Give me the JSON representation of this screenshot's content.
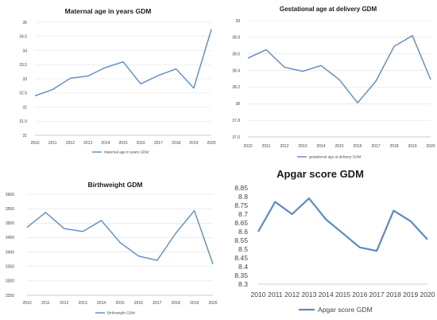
{
  "chart_data": [
    {
      "type": "line",
      "title": "Maternal age in years GDM",
      "categories": [
        "2010",
        "2011",
        "2012",
        "2013",
        "2014",
        "2015",
        "2016",
        "2017",
        "2018",
        "2019",
        "2020"
      ],
      "series": [
        {
          "name": "Maternal age in years GDM",
          "values": [
            32.4,
            32.62,
            33.02,
            33.1,
            33.4,
            33.6,
            32.82,
            33.12,
            33.35,
            32.67,
            34.75
          ]
        }
      ],
      "yticks": [
        "31",
        "31.5",
        "32",
        "32.5",
        "33",
        "33.5",
        "34",
        "34.5",
        "35"
      ],
      "ylim": [
        31,
        35
      ],
      "grid": true,
      "legend": "bottom"
    },
    {
      "type": "line",
      "title": "Gestational age at delivery GDM",
      "categories": [
        "2010",
        "2011",
        "2012",
        "2013",
        "2014",
        "2015",
        "2016",
        "2017",
        "2018",
        "2019",
        "2020"
      ],
      "series": [
        {
          "name": "gestational age at delivery GDM",
          "values": [
            38.55,
            38.65,
            38.44,
            38.39,
            38.46,
            38.29,
            38.01,
            38.27,
            38.69,
            38.82,
            38.29
          ]
        }
      ],
      "yticks": [
        "37.6",
        "37.8",
        "38",
        "38.2",
        "38.4",
        "38.6",
        "38.8",
        "39"
      ],
      "ylim": [
        37.6,
        39
      ],
      "grid": true,
      "legend": "bottom"
    },
    {
      "type": "line",
      "title": "Birthweight GDM",
      "categories": [
        "2010",
        "2011",
        "2012",
        "2013",
        "2014",
        "2015",
        "2016",
        "2017",
        "2018",
        "2019",
        "2020"
      ],
      "series": [
        {
          "name": "Birthweight GDM",
          "values": [
            3485,
            3537,
            3481,
            3471,
            3509,
            3433,
            3386,
            3371,
            3465,
            3543,
            3358
          ]
        }
      ],
      "yticks": [
        "3250",
        "3300",
        "3350",
        "3400",
        "3450",
        "3500",
        "3550",
        "3600"
      ],
      "ylim": [
        3250,
        3600
      ],
      "grid": true,
      "legend": "bottom"
    },
    {
      "type": "line",
      "title": "Apgar score GDM",
      "categories": [
        "2010",
        "2011",
        "2012",
        "2013",
        "2014",
        "2015",
        "2016",
        "2017",
        "2018",
        "2019",
        "2020"
      ],
      "series": [
        {
          "name": "Apgar score GDM",
          "values": [
            8.6,
            8.77,
            8.7,
            8.79,
            8.67,
            8.59,
            8.51,
            8.49,
            8.72,
            8.66,
            8.555
          ]
        }
      ],
      "yticks": [
        "8.3",
        "8.35",
        "8.4",
        "8.45",
        "8.5",
        "8.55",
        "8.6",
        "8.65",
        "8.7",
        "8.75",
        "8.8",
        "8.85"
      ],
      "ylim": [
        8.3,
        8.85
      ],
      "grid": false,
      "legend": "bottom"
    }
  ]
}
